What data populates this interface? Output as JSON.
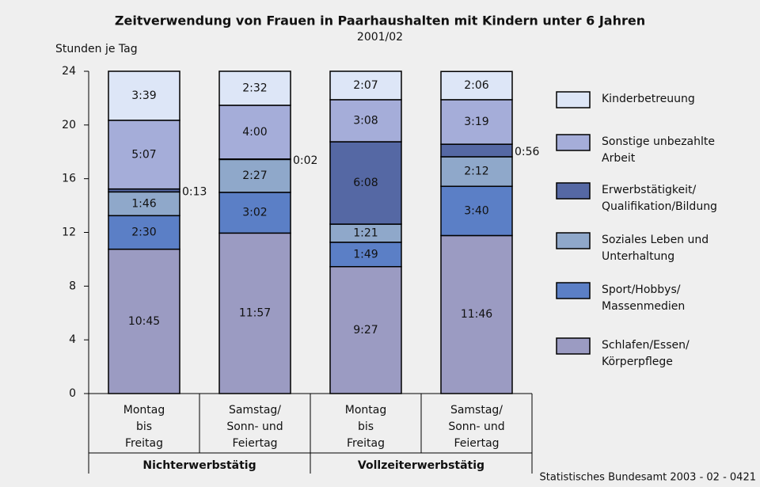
{
  "chart_data": {
    "type": "stacked_bar",
    "title": "Zeitverwendung von Frauen in Paarhaushalten mit Kindern unter 6 Jahren",
    "subtitle": "2001/02",
    "y_label": "Stunden je Tag",
    "categories": [
      [
        "Montag",
        "bis",
        "Freitag"
      ],
      [
        "Samstag/",
        "Sonn- und",
        "Feiertag"
      ],
      [
        "Montag",
        "bis",
        "Freitag"
      ],
      [
        "Samstag/",
        "Sonn- und",
        "Feiertag"
      ]
    ],
    "groups": [
      "Nichterwerbstätig",
      "Vollzeiterwerbstätig"
    ],
    "ylim": [
      0,
      24
    ],
    "yticks": [
      0,
      4,
      8,
      12,
      16,
      20,
      24
    ],
    "series": [
      {
        "name": "Schlafen/Essen/ Körperpflege",
        "color": "#9b9bc2",
        "values": [
          10.75,
          11.95,
          9.45,
          11.7667
        ],
        "value_labels": [
          "10:45",
          "11:57",
          "9:27",
          "11:46"
        ]
      },
      {
        "name": "Sport/Hobbys/ Massenmedien",
        "color": "#5b7fc6",
        "values": [
          2.5,
          3.0333,
          1.8167,
          3.6667
        ],
        "value_labels": [
          "2:30",
          "3:02",
          "1:49",
          "3:40"
        ]
      },
      {
        "name": "Soziales Leben und Unterhaltung",
        "color": "#8fa8ca",
        "values": [
          1.7667,
          2.45,
          1.35,
          2.2
        ],
        "value_labels": [
          "1:46",
          "2:27",
          "1:21",
          "2:12"
        ]
      },
      {
        "name": "Erwerbstätigkeit/ Qualifikation/Bildung",
        "color": "#5568a4",
        "values": [
          0.2167,
          0.0333,
          6.1333,
          0.9333
        ],
        "value_labels": [
          "0:13",
          "0:02",
          "6:08",
          "0:56"
        ]
      },
      {
        "name": "Sonstige unbezahlte Arbeit",
        "color": "#a5add9",
        "values": [
          5.1167,
          4.0,
          3.1333,
          3.3167
        ],
        "value_labels": [
          "5:07",
          "4:00",
          "3:08",
          "3:19"
        ]
      },
      {
        "name": "Kinderbetreuung",
        "color": "#dde6f7",
        "values": [
          3.65,
          2.5333,
          2.1167,
          2.1
        ],
        "value_labels": [
          "3:39",
          "2:32",
          "2:07",
          "2:06"
        ]
      }
    ],
    "source": "Statistisches Bundesamt 2003 - 02 - 0421"
  }
}
